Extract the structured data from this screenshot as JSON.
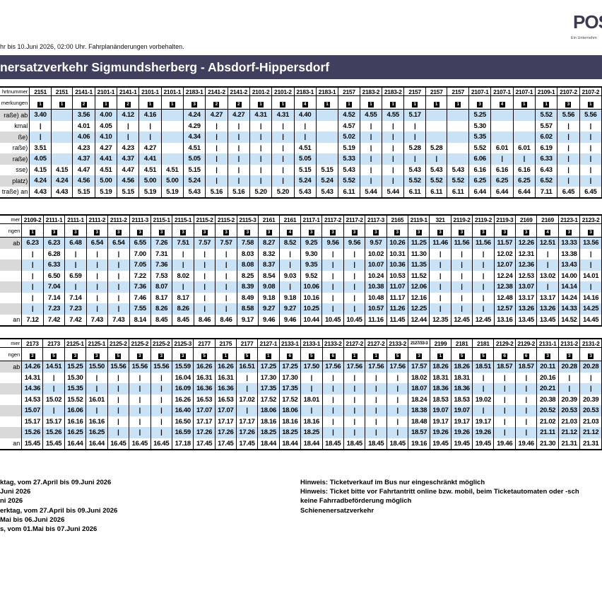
{
  "header": {
    "logo_text": "POS",
    "logo_subtext": "Ein Unternehm",
    "validity_note": "hr bis 10.Juni 2026, 02:00 Uhr. Fahrplanänderungen vorbehalten.",
    "title": "nersatzverkehr Sigmundsherberg - Absdorf-Hippersdorf"
  },
  "tables": [
    {
      "header_label": "hrtnummer",
      "remarks_label": "merkungen",
      "row_labels": [
        "raße) ab",
        "kmal",
        "ße)",
        "raße)",
        "raße)",
        "sse)",
        "platz)",
        "traße) an"
      ],
      "trains": [
        "2151",
        "2151",
        "2141-1",
        "2101-1",
        "2141-1",
        "2101-1",
        "2101-1",
        "2183-1",
        "2141-2",
        "2141-2",
        "2101-2",
        "2101-2",
        "2183-1",
        "2183-1",
        "2157",
        "2183-2",
        "2183-2",
        "2157",
        "2157",
        "2157",
        "2107-1",
        "2107-1",
        "2107-1",
        "2109-1",
        "2107-2",
        "2107-2"
      ],
      "remarks": [
        "1",
        "1",
        "2",
        "1",
        "2",
        "1",
        "1",
        "3",
        "2",
        "2",
        "1",
        "1",
        "4",
        "1",
        "1",
        "1",
        "1",
        "1",
        "1",
        "1",
        "3",
        "4",
        "1",
        "1",
        "3",
        "1"
      ],
      "rows": [
        [
          "3.40",
          "",
          "3.56",
          "4.00",
          "4.12",
          "4.16",
          "",
          "4.24",
          "4.27",
          "4.27",
          "4.31",
          "4.31",
          "4.40",
          "",
          "4.52",
          "4.55",
          "4.55",
          "5.17",
          "",
          "",
          "5.25",
          "",
          "",
          "5.52",
          "5.56",
          "5.56"
        ],
        [
          "|",
          "",
          "4.01",
          "4.05",
          "|",
          "|",
          "",
          "4.29",
          "|",
          "|",
          "|",
          "|",
          "|",
          "",
          "4.57",
          "|",
          "|",
          "|",
          "",
          "",
          "5.30",
          "",
          "",
          "5.57",
          "|",
          "|"
        ],
        [
          "|",
          "",
          "4.06",
          "4.10",
          "|",
          "|",
          "",
          "4.34",
          "|",
          "|",
          "|",
          "|",
          "|",
          "",
          "5.02",
          "|",
          "|",
          "|",
          "",
          "",
          "5.35",
          "",
          "",
          "6.02",
          "|",
          "|"
        ],
        [
          "3.51",
          "",
          "4.23",
          "4.27",
          "4.23",
          "4.27",
          "",
          "4.51",
          "|",
          "|",
          "|",
          "|",
          "4.51",
          "",
          "5.19",
          "|",
          "|",
          "5.28",
          "5.28",
          "",
          "5.52",
          "6.01",
          "6.01",
          "6.19",
          "|",
          "|"
        ],
        [
          "4.05",
          "",
          "4.37",
          "4.41",
          "4.37",
          "4.41",
          "",
          "5.05",
          "|",
          "|",
          "|",
          "|",
          "5.05",
          "",
          "5.33",
          "|",
          "|",
          "|",
          "|",
          "",
          "6.06",
          "|",
          "|",
          "6.33",
          "|",
          "|"
        ],
        [
          "4.15",
          "4.15",
          "4.47",
          "4.51",
          "4.47",
          "4.51",
          "4.51",
          "5.15",
          "|",
          "|",
          "|",
          "|",
          "5.15",
          "5.15",
          "5.43",
          "|",
          "|",
          "5.43",
          "5.43",
          "5.43",
          "6.16",
          "6.16",
          "6.16",
          "6.43",
          "|",
          "|"
        ],
        [
          "4.24",
          "4.24",
          "4.56",
          "5.00",
          "4.56",
          "5.00",
          "5.00",
          "5.24",
          "|",
          "|",
          "|",
          "|",
          "5.24",
          "5.24",
          "5.52",
          "|",
          "|",
          "5.52",
          "5.52",
          "5.52",
          "6.25",
          "6.25",
          "6.25",
          "6.52",
          "|",
          "|"
        ],
        [
          "4.43",
          "4.43",
          "5.15",
          "5.19",
          "5.15",
          "5.19",
          "5.19",
          "5.43",
          "5.16",
          "5.16",
          "5.20",
          "5.20",
          "5.43",
          "5.43",
          "6.11",
          "5.44",
          "5.44",
          "6.11",
          "6.11",
          "6.11",
          "6.44",
          "6.44",
          "6.44",
          "7.11",
          "6.45",
          "6.45"
        ]
      ]
    },
    {
      "header_label": "mer",
      "remarks_label": "ngen",
      "row_labels": [
        "ab",
        "",
        "",
        "",
        "",
        "",
        "",
        "an"
      ],
      "trains": [
        "2109-2",
        "2111-1",
        "2111-1",
        "2111-2",
        "2111-2",
        "2111-3",
        "2115-1",
        "2115-1",
        "2115-2",
        "2115-2",
        "2115-3",
        "2161",
        "2161",
        "2117-1",
        "2117-2",
        "2117-2",
        "2117-3",
        "2165",
        "2119-1",
        "321",
        "2119-2",
        "2119-2",
        "2119-3",
        "2169",
        "2169",
        "2123-1",
        "2123-2"
      ],
      "remarks": [
        "1",
        "3",
        "3",
        "3",
        "3",
        "3",
        "3",
        "3",
        "3",
        "3",
        "3",
        "3",
        "4",
        "3",
        "3",
        "3",
        "3",
        "3",
        "3",
        "3",
        "3",
        "3",
        "3",
        "3",
        "4",
        "3",
        "3"
      ],
      "rows": [
        [
          "6.23",
          "6.23",
          "6.48",
          "6.54",
          "6.54",
          "6.55",
          "7.26",
          "7.51",
          "7.57",
          "7.57",
          "7.58",
          "8.27",
          "8.52",
          "9.25",
          "9.56",
          "9.56",
          "9.57",
          "10.26",
          "11.25",
          "11.46",
          "11.56",
          "11.56",
          "11.57",
          "12.26",
          "12.51",
          "13.33",
          "13.56"
        ],
        [
          "|",
          "6.28",
          "|",
          "|",
          "|",
          "7.00",
          "7.31",
          "|",
          "|",
          "|",
          "8.03",
          "8.32",
          "|",
          "9.30",
          "|",
          "|",
          "10.02",
          "10.31",
          "11.30",
          "|",
          "|",
          "|",
          "12.02",
          "12.31",
          "|",
          "13.38",
          "|"
        ],
        [
          "|",
          "6.33",
          "|",
          "|",
          "|",
          "7.05",
          "7.36",
          "|",
          "|",
          "|",
          "8.08",
          "8.37",
          "|",
          "9.35",
          "|",
          "|",
          "10.07",
          "10.36",
          "11.35",
          "|",
          "|",
          "|",
          "12.07",
          "12.36",
          "|",
          "13.43",
          "|"
        ],
        [
          "|",
          "6.50",
          "6.59",
          "|",
          "|",
          "7.22",
          "7.53",
          "8.02",
          "|",
          "|",
          "8.25",
          "8.54",
          "9.03",
          "9.52",
          "|",
          "|",
          "10.24",
          "10.53",
          "11.52",
          "|",
          "|",
          "|",
          "12.24",
          "12.53",
          "13.02",
          "14.00",
          "14.01"
        ],
        [
          "|",
          "7.04",
          "|",
          "|",
          "|",
          "7.36",
          "8.07",
          "|",
          "|",
          "|",
          "8.39",
          "9.08",
          "|",
          "10.06",
          "|",
          "|",
          "10.38",
          "11.07",
          "12.06",
          "|",
          "|",
          "|",
          "12.38",
          "13.07",
          "|",
          "14.14",
          "|"
        ],
        [
          "|",
          "7.14",
          "7.14",
          "|",
          "|",
          "7.46",
          "8.17",
          "8.17",
          "|",
          "|",
          "8.49",
          "9.18",
          "9.18",
          "10.16",
          "|",
          "|",
          "10.48",
          "11.17",
          "12.16",
          "|",
          "|",
          "|",
          "12.48",
          "13.17",
          "13.17",
          "14.24",
          "14.16"
        ],
        [
          "|",
          "7.23",
          "7.23",
          "|",
          "|",
          "7.55",
          "8.26",
          "8.26",
          "|",
          "|",
          "8.58",
          "9.27",
          "9.27",
          "10.25",
          "|",
          "|",
          "10.57",
          "11.26",
          "12.25",
          "|",
          "|",
          "|",
          "12.57",
          "13.26",
          "13.26",
          "14.33",
          "14.25"
        ],
        [
          "7.12",
          "7.42",
          "7.42",
          "7.43",
          "7.43",
          "8.14",
          "8.45",
          "8.45",
          "8.46",
          "8.46",
          "9.17",
          "9.46",
          "9.46",
          "10.44",
          "10.45",
          "10.45",
          "11.16",
          "11.45",
          "12.44",
          "12.35",
          "12.45",
          "12.45",
          "13.16",
          "13.45",
          "13.45",
          "14.52",
          "14.45"
        ]
      ]
    },
    {
      "header_label": "mer",
      "remarks_label": "ngen",
      "row_labels": [
        "ab",
        "",
        "",
        "",
        "",
        "",
        "",
        "an"
      ],
      "trains": [
        "2173",
        "2173",
        "2125-1",
        "2125-1",
        "2125-2",
        "2125-2",
        "2125-2",
        "2125-3",
        "2177",
        "2175",
        "2177",
        "2127-1",
        "2133-1",
        "2133-1",
        "2133-2",
        "2127-2",
        "2127-2",
        "2133-2",
        "2127/33-3",
        "2199",
        "2181",
        "2181",
        "2129-2",
        "2129-2",
        "2131-1",
        "2131-2",
        "2131-2"
      ],
      "remarks": [
        "3",
        "5",
        "3",
        "3",
        "5",
        "3",
        "3",
        "3",
        "5",
        "1",
        "5",
        "1",
        "6",
        "5",
        "6",
        "1",
        "1",
        "5",
        "3",
        "1",
        "5",
        "5",
        "6",
        "6",
        "3",
        "3",
        "3"
      ],
      "rows": [
        [
          "14.26",
          "14.51",
          "15.25",
          "15.50",
          "15.56",
          "15.56",
          "15.56",
          "15.59",
          "16.26",
          "16.26",
          "16.51",
          "17.25",
          "17.25",
          "17.50",
          "17.56",
          "17.56",
          "17.56",
          "17.56",
          "17.57",
          "18.26",
          "18.26",
          "18.51",
          "18.57",
          "18.57",
          "20.11",
          "20.28",
          "20.28"
        ],
        [
          "14.31",
          "|",
          "15.30",
          "|",
          "|",
          "|",
          "|",
          "16.04",
          "16.31",
          "16.31",
          "|",
          "17.30",
          "17.30",
          "|",
          "|",
          "|",
          "|",
          "|",
          "18.02",
          "18.31",
          "18.31",
          "|",
          "|",
          "|",
          "20.16",
          "|",
          "|"
        ],
        [
          "14.36",
          "|",
          "15.35",
          "|",
          "|",
          "|",
          "|",
          "16.09",
          "16.36",
          "16.36",
          "|",
          "17.35",
          "17.35",
          "|",
          "|",
          "|",
          "|",
          "|",
          "18.07",
          "18.36",
          "18.36",
          "|",
          "|",
          "|",
          "20.21",
          "|",
          "|"
        ],
        [
          "14.53",
          "15.02",
          "15.52",
          "16.01",
          "|",
          "|",
          "|",
          "16.26",
          "16.53",
          "16.53",
          "17.02",
          "17.52",
          "17.52",
          "18.01",
          "|",
          "|",
          "|",
          "|",
          "18.24",
          "18.53",
          "18.53",
          "19.02",
          "|",
          "|",
          "20.38",
          "20.39",
          "20.39"
        ],
        [
          "15.07",
          "|",
          "16.06",
          "|",
          "|",
          "|",
          "|",
          "16.40",
          "17.07",
          "17.07",
          "|",
          "18.06",
          "18.06",
          "|",
          "|",
          "|",
          "|",
          "|",
          "18.38",
          "19.07",
          "19.07",
          "|",
          "|",
          "|",
          "20.52",
          "20.53",
          "20.53"
        ],
        [
          "15.17",
          "15.17",
          "16.16",
          "16.16",
          "|",
          "|",
          "|",
          "16.50",
          "17.17",
          "17.17",
          "17.17",
          "18.16",
          "18.16",
          "18.16",
          "|",
          "|",
          "|",
          "|",
          "18.48",
          "19.17",
          "19.17",
          "19.17",
          "|",
          "|",
          "21.02",
          "21.03",
          "21.03"
        ],
        [
          "15.26",
          "15.26",
          "16.25",
          "16.25",
          "|",
          "|",
          "|",
          "16.59",
          "17.26",
          "17.26",
          "17.26",
          "18.25",
          "18.25",
          "18.25",
          "|",
          "|",
          "|",
          "|",
          "18.57",
          "19.26",
          "19.26",
          "19.26",
          "|",
          "|",
          "21.11",
          "21.12",
          "21.12"
        ],
        [
          "15.45",
          "15.45",
          "16.44",
          "16.44",
          "16.45",
          "16.45",
          "16.45",
          "17.18",
          "17.45",
          "17.45",
          "17.45",
          "18.44",
          "18.44",
          "18.44",
          "18.45",
          "18.45",
          "18.45",
          "18.45",
          "19.16",
          "19.45",
          "19.45",
          "19.45",
          "19.46",
          "19.46",
          "21.30",
          "21.31",
          "21.31"
        ]
      ]
    }
  ],
  "footnotes": [
    "ktag, vom 27.April bis 09.Juni 2026",
    "Juni 2026",
    "ni 2026",
    "erktag, vom 27.April bis 09.Juni 2026",
    "Mai bis 06.Juni 2026",
    "s, vom 01.Mai bis 07.Juni 2026"
  ],
  "notices": [
    "Hinweis: Ticketverkauf im Bus nur eingeschränkt möglich",
    "Hinweis: Ticket bitte vor Fahrtantritt online bzw. mobil, beim Ticketautomaten oder -sch",
    "keine Fahrradbeförderung möglich",
    "Schienenersatzverkehr"
  ],
  "colors": {
    "title_bar": "#413f5e",
    "stripe_blue": "#c9e2f5",
    "stripe_grey": "#d9d9d9",
    "logo": "#3b3a50"
  }
}
